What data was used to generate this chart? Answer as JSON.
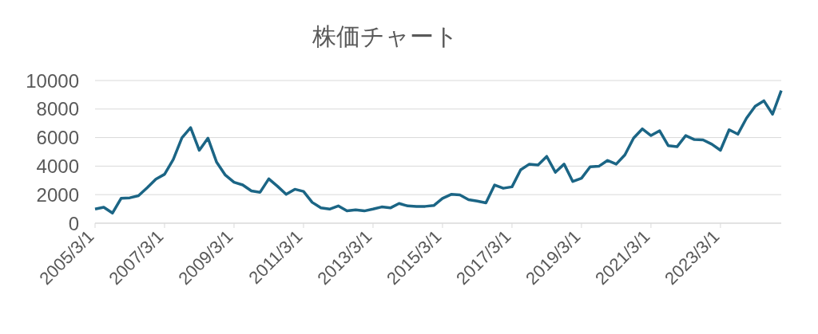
{
  "chart_data": {
    "type": "line",
    "title": "株価チャート",
    "categories": [
      "2005/3/1",
      null,
      null,
      null,
      null,
      null,
      null,
      null,
      "2007/3/1",
      null,
      null,
      null,
      null,
      null,
      null,
      null,
      "2009/3/1",
      null,
      null,
      null,
      null,
      null,
      null,
      null,
      "2011/3/1",
      null,
      null,
      null,
      null,
      null,
      null,
      null,
      "2013/3/1",
      null,
      null,
      null,
      null,
      null,
      null,
      null,
      "2015/3/1",
      null,
      null,
      null,
      null,
      null,
      null,
      null,
      "2017/3/1",
      null,
      null,
      null,
      null,
      null,
      null,
      null,
      "2019/3/1",
      null,
      null,
      null,
      null,
      null,
      null,
      null,
      "2021/3/1",
      null,
      null,
      null,
      null,
      null,
      null,
      null,
      "2023/3/1",
      null,
      null,
      null,
      null,
      null,
      null,
      null
    ],
    "series": [
      {
        "color": "#1b6585",
        "values": [
          990,
          1120,
          710,
          1740,
          1780,
          1930,
          2490,
          3090,
          3430,
          4460,
          5990,
          6700,
          5110,
          5960,
          4270,
          3370,
          2870,
          2680,
          2260,
          2170,
          3110,
          2590,
          2020,
          2380,
          2230,
          1460,
          1080,
          990,
          1210,
          860,
          940,
          860,
          990,
          1140,
          1070,
          1380,
          1210,
          1180,
          1180,
          1240,
          1740,
          2020,
          1980,
          1650,
          1550,
          1420,
          2680,
          2450,
          2550,
          3740,
          4140,
          4080,
          4680,
          3570,
          4140,
          2920,
          3150,
          3950,
          3990,
          4400,
          4140,
          4790,
          5960,
          6610,
          6140,
          6480,
          5430,
          5360,
          6140,
          5860,
          5840,
          5540,
          5110,
          6550,
          6240,
          7360,
          8200,
          8580,
          7640,
          9290
        ]
      }
    ],
    "ylim": [
      0,
      10000
    ],
    "yticks": [
      0,
      2000,
      4000,
      6000,
      8000,
      10000
    ],
    "grid": "y",
    "legend": false,
    "marker": "none",
    "line_style": "solid"
  }
}
